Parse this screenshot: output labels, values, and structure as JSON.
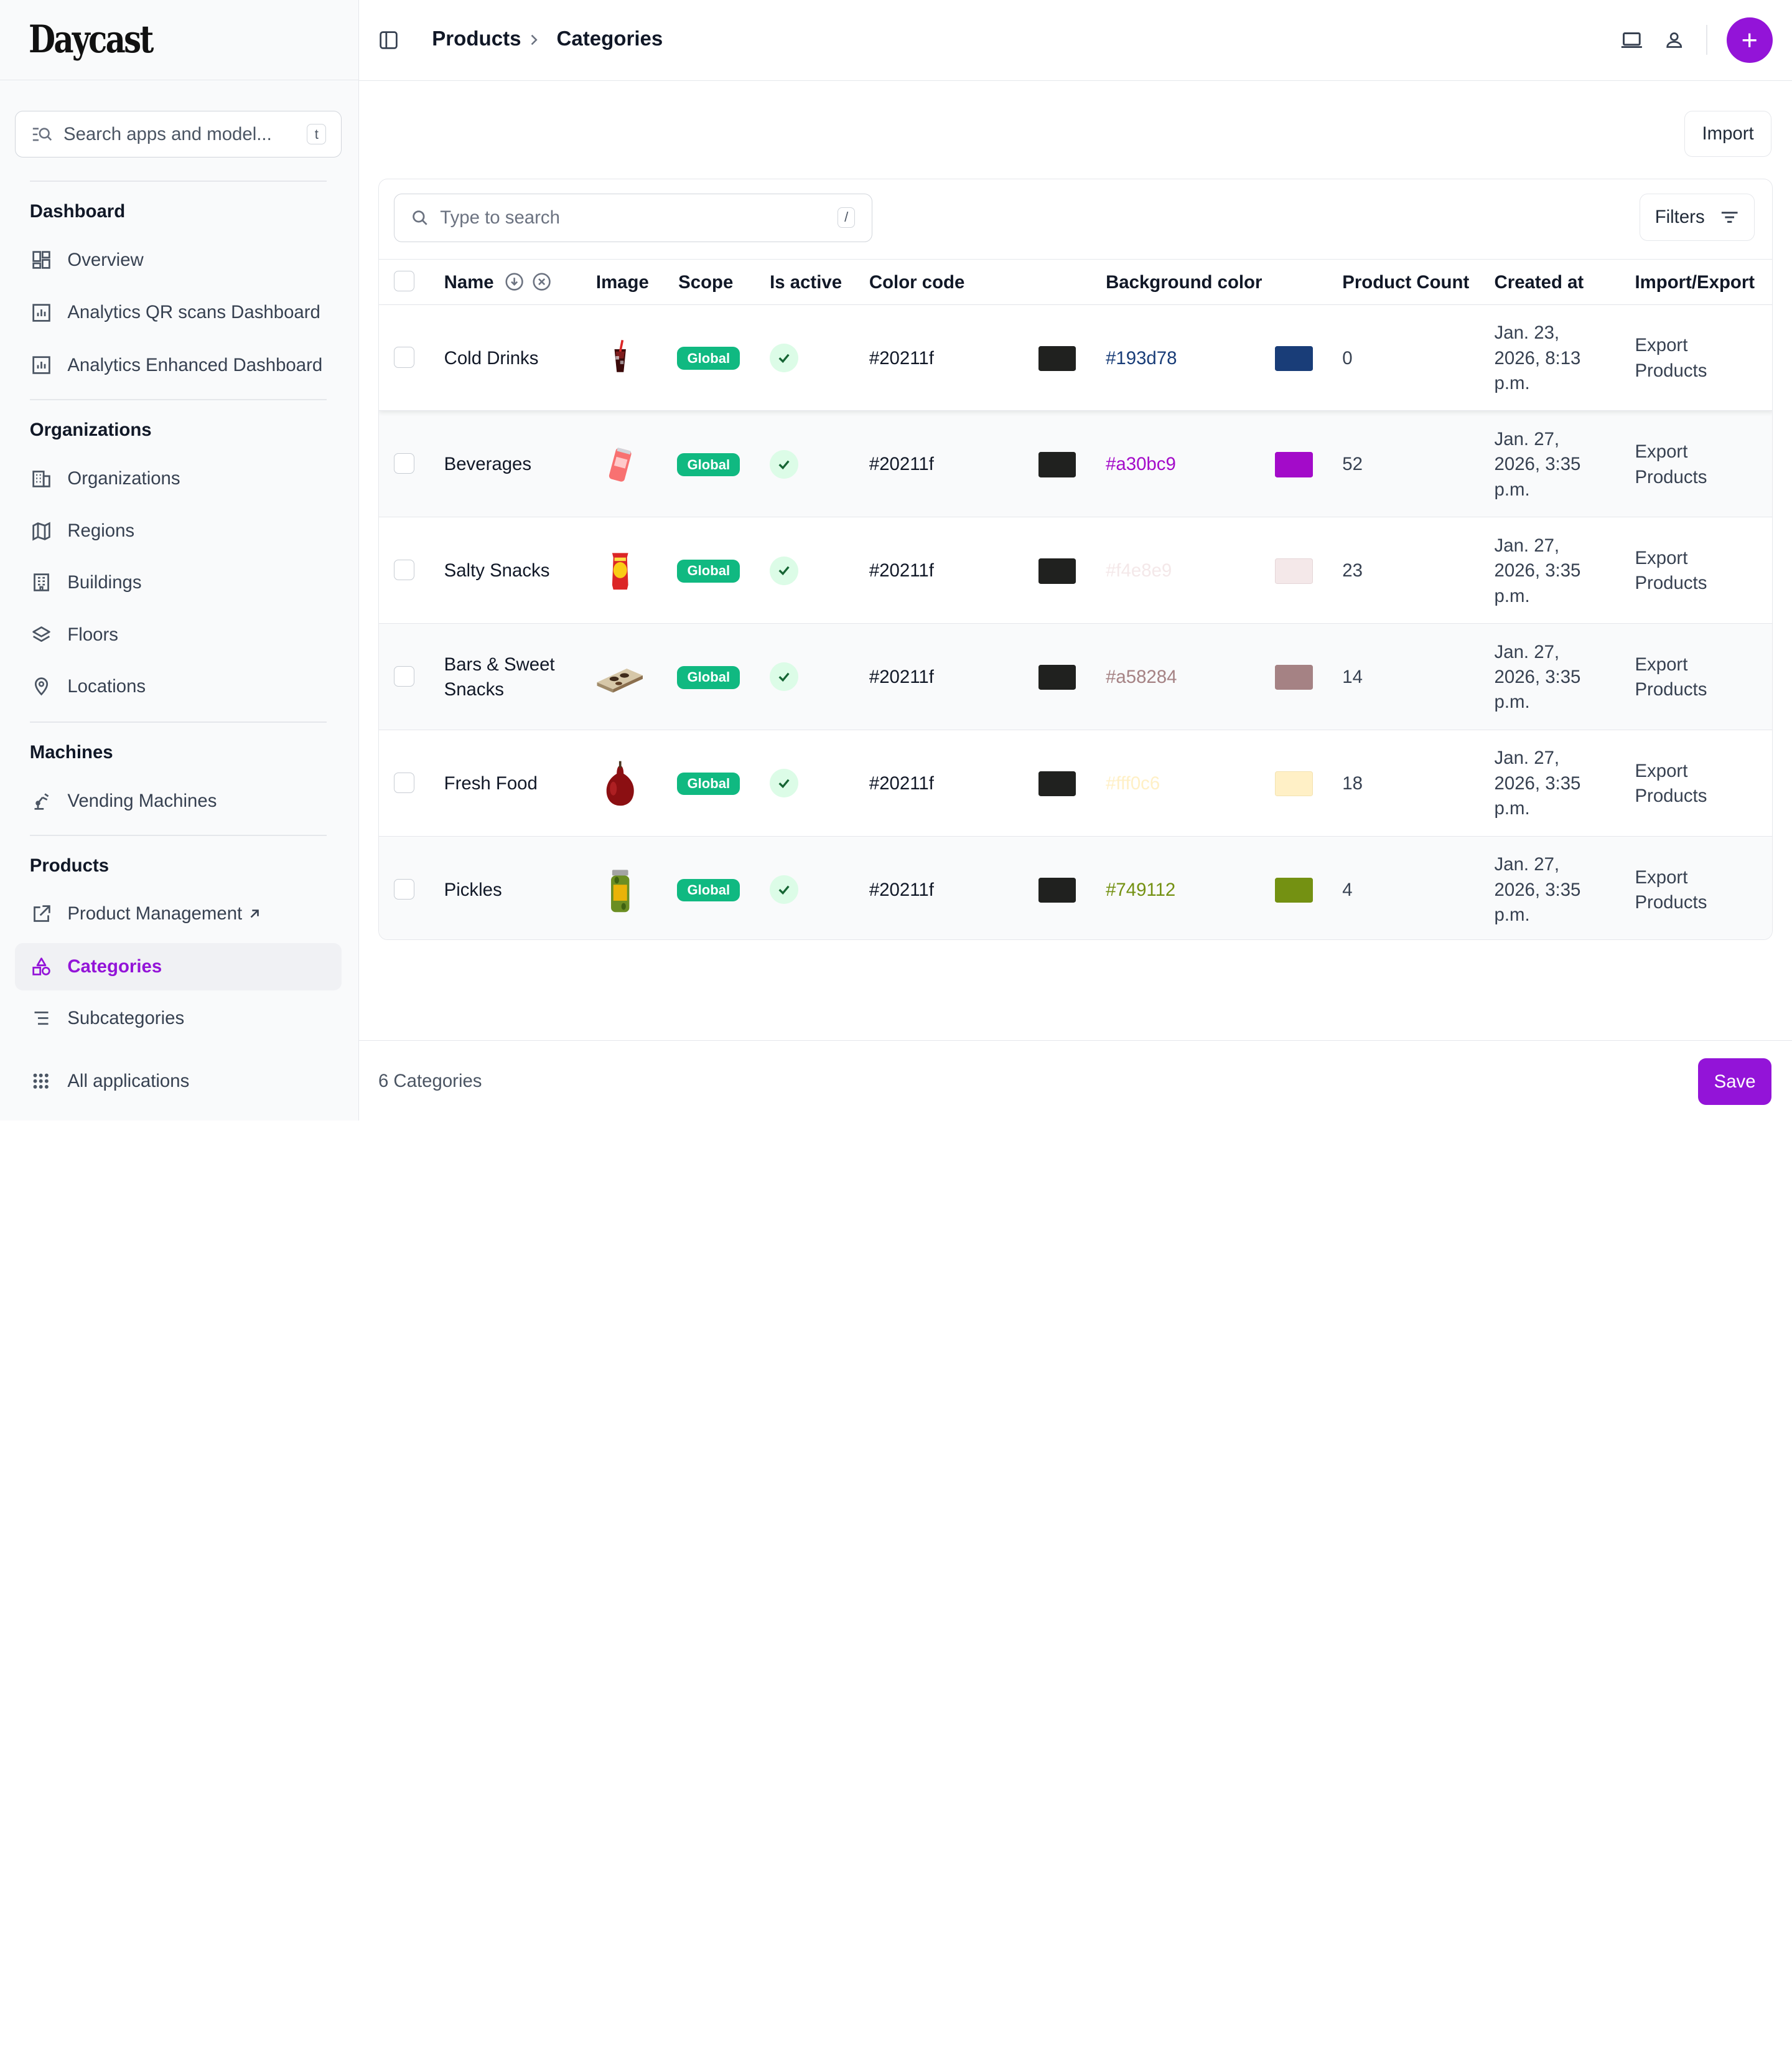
{
  "app": {
    "brand": "Daycast"
  },
  "sidebar": {
    "search_label": "Search apps and model...",
    "search_shortcut": "t",
    "sections": {
      "dashboard": "Dashboard",
      "organizations": "Organizations",
      "machines": "Machines",
      "products": "Products"
    },
    "items": {
      "overview": "Overview",
      "analytics_qr": "Analytics QR scans Dashboard",
      "analytics_enhanced": "Analytics Enhanced Dashboard",
      "organizations": "Organizations",
      "regions": "Regions",
      "buildings": "Buildings",
      "floors": "Floors",
      "locations": "Locations",
      "vending_machines": "Vending Machines",
      "product_management": "Product Management",
      "categories": "Categories",
      "subcategories": "Subcategories",
      "all_applications": "All applications"
    },
    "accent_color": "#9314d8"
  },
  "header": {
    "breadcrumb": [
      "Products",
      "Categories"
    ]
  },
  "toolbar": {
    "import_label": "Import",
    "search_placeholder": "Type to search",
    "search_shortcut": "/",
    "filters_label": "Filters"
  },
  "table": {
    "columns": {
      "name": "Name",
      "image": "Image",
      "scope": "Scope",
      "is_active": "Is active",
      "color_code": "Color code",
      "background_color": "Background color",
      "product_count": "Product Count",
      "created_at": "Created at",
      "import_export": "Import/Export"
    },
    "rows": [
      {
        "name": "Cold Drinks",
        "image": "cold-drinks-image",
        "scope": "Global",
        "is_active": true,
        "color_code": "#20211f",
        "bg": "#193d78",
        "count": "0",
        "created": "Jan. 23, 2026, 8:13 p.m.",
        "action": "Export Products"
      },
      {
        "name": "Beverages",
        "image": "beverages-image",
        "scope": "Global",
        "is_active": true,
        "color_code": "#20211f",
        "bg": "#a30bc9",
        "count": "52",
        "created": "Jan. 27, 2026, 3:35 p.m.",
        "action": "Export Products"
      },
      {
        "name": "Salty Snacks",
        "image": "salty-snacks-image",
        "scope": "Global",
        "is_active": true,
        "color_code": "#20211f",
        "bg": "#f4e8e9",
        "count": "23",
        "created": "Jan. 27, 2026, 3:35 p.m.",
        "action": "Export Products"
      },
      {
        "name": "Bars & Sweet Snacks",
        "image": "bars-sweet-snacks-image",
        "scope": "Global",
        "is_active": true,
        "color_code": "#20211f",
        "bg": "#a58284",
        "count": "14",
        "created": "Jan. 27, 2026, 3:35 p.m.",
        "action": "Export Products"
      },
      {
        "name": "Fresh Food",
        "image": "fresh-food-image",
        "scope": "Global",
        "is_active": true,
        "color_code": "#20211f",
        "bg": "#fff0c6",
        "count": "18",
        "created": "Jan. 27, 2026, 3:35 p.m.",
        "action": "Export Products"
      },
      {
        "name": "Pickles",
        "image": "pickles-image",
        "scope": "Global",
        "is_active": true,
        "color_code": "#20211f",
        "bg": "#749112",
        "count": "4",
        "created": "Jan. 27, 2026, 3:35 p.m.",
        "action": "Export Products"
      }
    ]
  },
  "footer": {
    "count_label": "6 Categories",
    "save_label": "Save"
  }
}
